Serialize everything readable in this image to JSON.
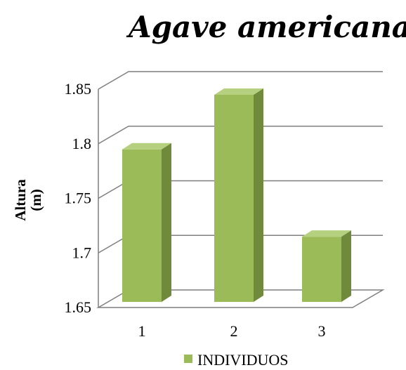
{
  "chart_data": {
    "type": "bar",
    "title": "Agave americana",
    "ylabel_line1": "Altura",
    "ylabel_line2": "(m)",
    "categories": [
      "1",
      "2",
      "3"
    ],
    "series": [
      {
        "name": "INDIVIDUOS",
        "values": [
          1.8,
          1.85,
          1.72
        ]
      }
    ],
    "ylim": [
      1.65,
      1.85
    ],
    "yticks": [
      "1.65",
      "1.7",
      "1.75",
      "1.8",
      "1.85"
    ],
    "ytick_values": [
      1.65,
      1.7,
      1.75,
      1.8,
      1.85
    ],
    "grid": true,
    "three_d": true,
    "legend_position": "bottom",
    "colors": {
      "bar_front": "#9bbb59",
      "bar_top": "#b5d07e",
      "bar_side": "#6f8a3a",
      "grid": "#7f7f7f",
      "floor": "#ffffff"
    }
  }
}
